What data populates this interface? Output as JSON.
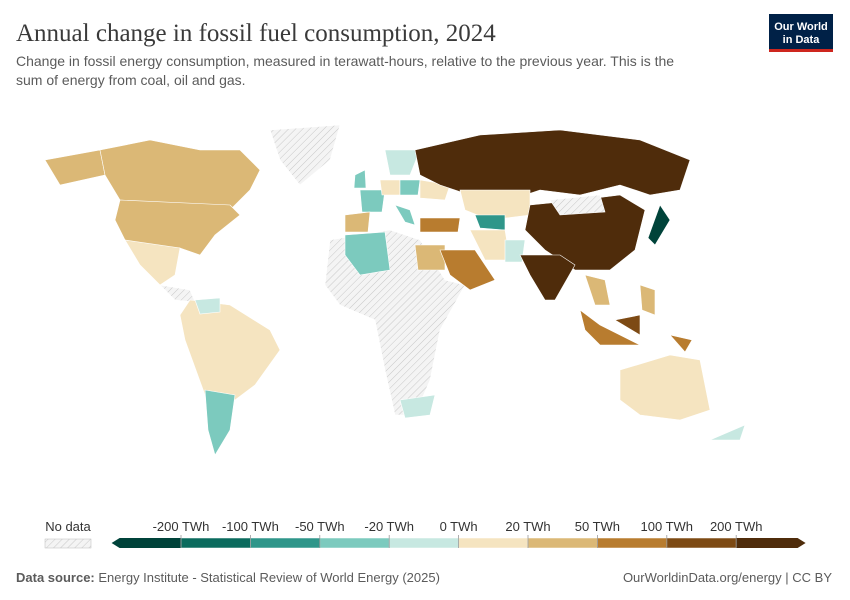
{
  "header": {
    "title": "Annual change in fossil fuel consumption, 2024",
    "subtitle": [
      "Change in fossil energy consumption, measured in terawatt-hours, relative to the previous year. This is the",
      "sum of energy from coal, oil and gas."
    ],
    "logo": [
      "Our World",
      "in Data"
    ]
  },
  "legend": {
    "no_data": "No data",
    "ticks": [
      {
        "value": -200,
        "label": "-200 TWh"
      },
      {
        "value": -100,
        "label": "-100 TWh"
      },
      {
        "value": -50,
        "label": "-50 TWh"
      },
      {
        "value": -20,
        "label": "-20 TWh"
      },
      {
        "value": 0,
        "label": "0 TWh"
      },
      {
        "value": 20,
        "label": "20 TWh"
      },
      {
        "value": 50,
        "label": "50 TWh"
      },
      {
        "value": 100,
        "label": "100 TWh"
      },
      {
        "value": 200,
        "label": "200 TWh"
      }
    ],
    "colors": [
      "#00433a",
      "#0b6b5e",
      "#2f968a",
      "#7ccabe",
      "#c7e8e1",
      "#f5e4c0",
      "#dbb876",
      "#b87c2f",
      "#7d4a14",
      "#4f2c0b"
    ]
  },
  "footer": {
    "source_label": "Data source:",
    "source": "Energy Institute - Statistical Review of World Energy (2025)",
    "url": "OurWorldinData.org/energy | CC BY"
  }
}
